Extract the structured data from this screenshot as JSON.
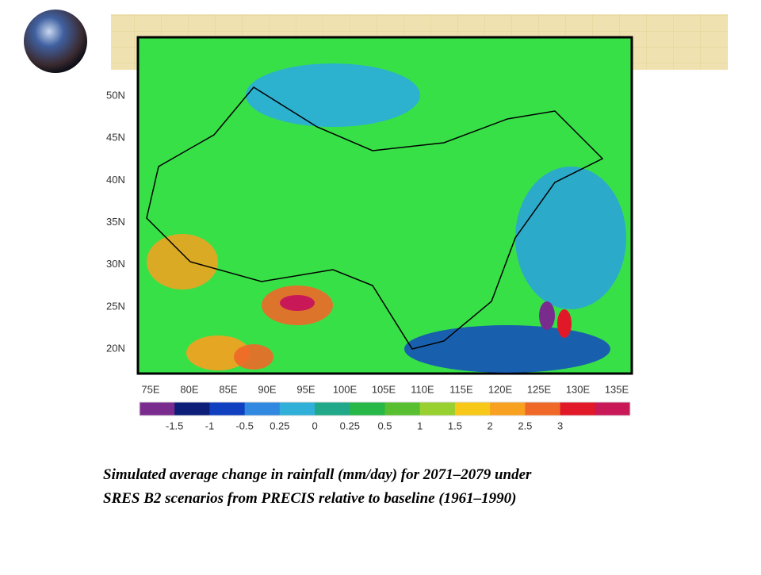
{
  "map": {
    "lat_labels": [
      "50N",
      "45N",
      "40N",
      "35N",
      "30N",
      "25N",
      "20N"
    ],
    "lon_labels": [
      "75E",
      "80E",
      "85E",
      "90E",
      "95E",
      "100E",
      "105E",
      "110E",
      "115E",
      "120E",
      "125E",
      "130E",
      "135E"
    ]
  },
  "legend": {
    "labels": [
      "-1.5",
      "-1",
      "-0.5",
      "0.25",
      "0",
      "0.25",
      "0.5",
      "1",
      "1.5",
      "2",
      "2.5",
      "3"
    ],
    "colors": [
      "#7a2c8e",
      "#0c1e78",
      "#1040c0",
      "#3088e0",
      "#30b0d8",
      "#20a888",
      "#28b848",
      "#58c030",
      "#98d030",
      "#f8c818",
      "#f8a020",
      "#f06828",
      "#e01828",
      "#c81858"
    ]
  },
  "caption": [
    "Simulated average change in rainfall (mm/day) for 2071–2079 under",
    "SRES B2 scenarios from PRECIS relative to baseline (1961–1990)"
  ]
}
